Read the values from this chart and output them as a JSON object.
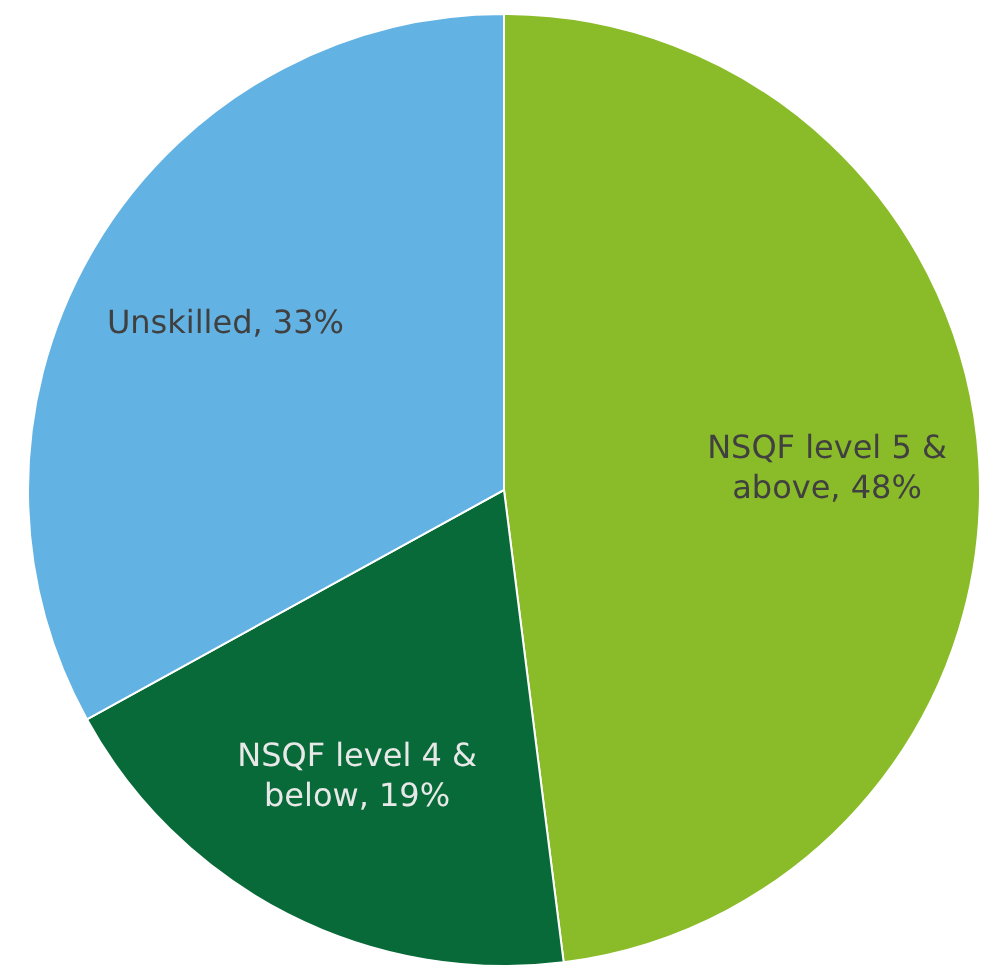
{
  "chart_data": {
    "type": "pie",
    "categories": [
      "NSQF level 5 & above",
      "NSQF level 4 & below",
      "Unskilled"
    ],
    "values": [
      48,
      19,
      33
    ],
    "value_labels": [
      "48%",
      "19%",
      "33%"
    ],
    "colors": [
      "#8abb28",
      "#076a38",
      "#62b3e3"
    ]
  }
}
